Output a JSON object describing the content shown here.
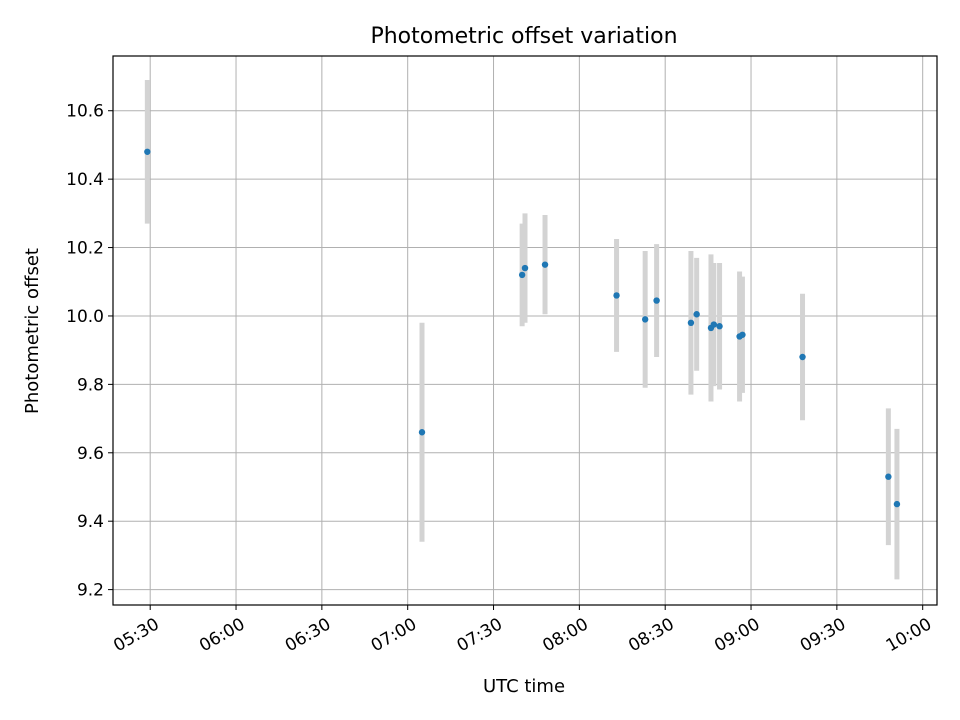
{
  "chart_data": {
    "type": "scatter",
    "title": "Photometric offset variation",
    "xlabel": "UTC time",
    "ylabel": "Photometric offset",
    "x_axis": "time",
    "x_range": [
      "05:17",
      "10:05"
    ],
    "ylim": [
      9.155,
      10.76
    ],
    "x_ticks": [
      "05:30",
      "06:00",
      "06:30",
      "07:00",
      "07:30",
      "08:00",
      "08:30",
      "09:00",
      "09:30",
      "10:00"
    ],
    "y_ticks": [
      9.2,
      9.4,
      9.6,
      9.8,
      10.0,
      10.2,
      10.4,
      10.6
    ],
    "grid": true,
    "point_color": "#1f77b4",
    "errorbar_color": "#d3d3d3",
    "points": [
      {
        "x": "05:29",
        "y": 10.48,
        "err": 0.21
      },
      {
        "x": "07:05",
        "y": 9.66,
        "err": 0.32
      },
      {
        "x": "07:40",
        "y": 10.12,
        "err": 0.15
      },
      {
        "x": "07:41",
        "y": 10.14,
        "err": 0.16
      },
      {
        "x": "07:48",
        "y": 10.15,
        "err": 0.145
      },
      {
        "x": "08:13",
        "y": 10.06,
        "err": 0.165
      },
      {
        "x": "08:23",
        "y": 9.99,
        "err": 0.2
      },
      {
        "x": "08:27",
        "y": 10.045,
        "err": 0.165
      },
      {
        "x": "08:39",
        "y": 9.98,
        "err": 0.21
      },
      {
        "x": "08:41",
        "y": 10.005,
        "err": 0.165
      },
      {
        "x": "08:46",
        "y": 9.965,
        "err": 0.215
      },
      {
        "x": "08:47",
        "y": 9.975,
        "err": 0.18
      },
      {
        "x": "08:49",
        "y": 9.97,
        "err": 0.185
      },
      {
        "x": "08:56",
        "y": 9.94,
        "err": 0.19
      },
      {
        "x": "08:57",
        "y": 9.945,
        "err": 0.17
      },
      {
        "x": "09:18",
        "y": 9.88,
        "err": 0.185
      },
      {
        "x": "09:48",
        "y": 9.53,
        "err": 0.2
      },
      {
        "x": "09:51",
        "y": 9.45,
        "err": 0.22
      }
    ]
  }
}
